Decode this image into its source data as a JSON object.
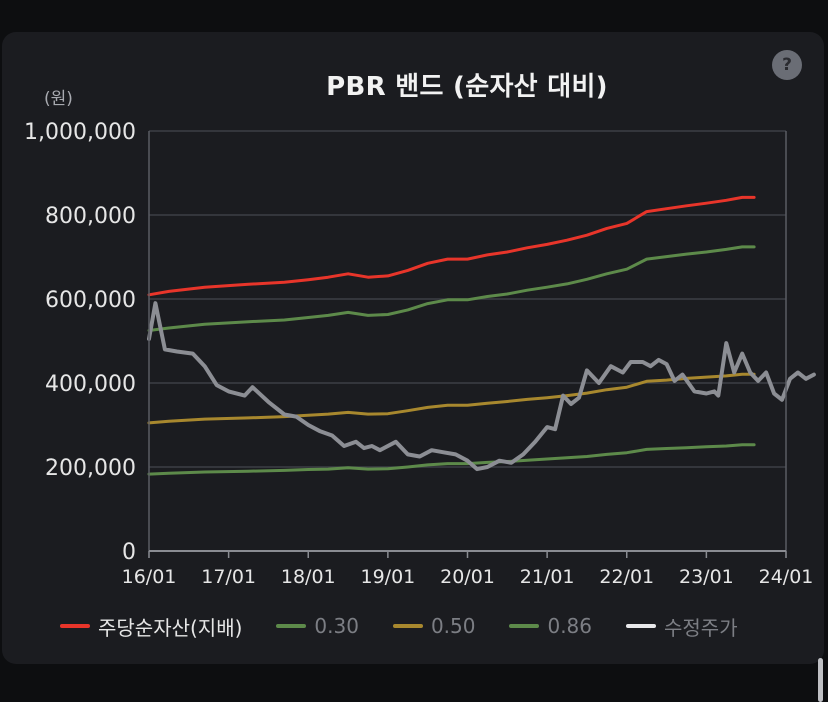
{
  "help_label": "?",
  "chart_data": {
    "type": "line",
    "title": "PBR 밴드 (순자산 대비)",
    "unit_label": "(원)",
    "xlabel": "",
    "ylabel": "",
    "ylim": [
      0,
      1000000
    ],
    "y_ticks": [
      0,
      200000,
      400000,
      600000,
      800000,
      1000000
    ],
    "y_tick_labels": [
      "0",
      "200,000",
      "400,000",
      "600,000",
      "800,000",
      "1,000,000"
    ],
    "x_range": [
      2016.0,
      2024.0
    ],
    "x_ticks": [
      2016,
      2017,
      2018,
      2019,
      2020,
      2021,
      2022,
      2023,
      2024
    ],
    "x_tick_labels": [
      "16/01",
      "17/01",
      "18/01",
      "19/01",
      "20/01",
      "21/01",
      "22/01",
      "23/01",
      "24/01"
    ],
    "grid": true,
    "legend_position": "bottom",
    "series": [
      {
        "name": "주당순자산(지배)",
        "color": "#e8352a",
        "points": [
          [
            2016.0,
            610000
          ],
          [
            2016.25,
            618000
          ],
          [
            2016.7,
            628000
          ],
          [
            2017.25,
            635000
          ],
          [
            2017.7,
            640000
          ],
          [
            2018.0,
            646000
          ],
          [
            2018.25,
            652000
          ],
          [
            2018.5,
            660000
          ],
          [
            2018.75,
            652000
          ],
          [
            2019.0,
            655000
          ],
          [
            2019.25,
            668000
          ],
          [
            2019.5,
            685000
          ],
          [
            2019.75,
            695000
          ],
          [
            2020.0,
            695000
          ],
          [
            2020.25,
            705000
          ],
          [
            2020.5,
            712000
          ],
          [
            2020.75,
            722000
          ],
          [
            2021.0,
            730000
          ],
          [
            2021.25,
            740000
          ],
          [
            2021.5,
            752000
          ],
          [
            2021.75,
            768000
          ],
          [
            2022.0,
            780000
          ],
          [
            2022.25,
            808000
          ],
          [
            2022.5,
            815000
          ],
          [
            2022.75,
            822000
          ],
          [
            2023.0,
            828000
          ],
          [
            2023.25,
            835000
          ],
          [
            2023.45,
            842000
          ],
          [
            2023.6,
            842000
          ]
        ]
      },
      {
        "name": "0.30",
        "color": "#5d8a4a",
        "points": [
          [
            2016.0,
            183000
          ],
          [
            2016.25,
            185000
          ],
          [
            2016.7,
            188000
          ],
          [
            2017.25,
            190000
          ],
          [
            2017.7,
            192000
          ],
          [
            2018.0,
            194000
          ],
          [
            2018.25,
            195000
          ],
          [
            2018.5,
            198000
          ],
          [
            2018.75,
            195000
          ],
          [
            2019.0,
            196000
          ],
          [
            2019.25,
            200000
          ],
          [
            2019.5,
            205000
          ],
          [
            2019.75,
            208000
          ],
          [
            2020.0,
            208000
          ],
          [
            2020.25,
            211000
          ],
          [
            2020.5,
            213000
          ],
          [
            2020.75,
            216000
          ],
          [
            2021.0,
            219000
          ],
          [
            2021.25,
            222000
          ],
          [
            2021.5,
            225000
          ],
          [
            2021.75,
            230000
          ],
          [
            2022.0,
            234000
          ],
          [
            2022.25,
            242000
          ],
          [
            2022.5,
            244000
          ],
          [
            2022.75,
            246000
          ],
          [
            2023.0,
            248000
          ],
          [
            2023.25,
            250000
          ],
          [
            2023.45,
            253000
          ],
          [
            2023.6,
            253000
          ]
        ]
      },
      {
        "name": "0.50",
        "color": "#a8882e",
        "points": [
          [
            2016.0,
            305000
          ],
          [
            2016.25,
            309000
          ],
          [
            2016.7,
            314000
          ],
          [
            2017.25,
            317000
          ],
          [
            2017.7,
            320000
          ],
          [
            2018.0,
            323000
          ],
          [
            2018.25,
            326000
          ],
          [
            2018.5,
            330000
          ],
          [
            2018.75,
            326000
          ],
          [
            2019.0,
            327000
          ],
          [
            2019.25,
            334000
          ],
          [
            2019.5,
            342000
          ],
          [
            2019.75,
            347000
          ],
          [
            2020.0,
            347000
          ],
          [
            2020.25,
            352000
          ],
          [
            2020.5,
            356000
          ],
          [
            2020.75,
            361000
          ],
          [
            2021.0,
            365000
          ],
          [
            2021.25,
            370000
          ],
          [
            2021.5,
            376000
          ],
          [
            2021.75,
            384000
          ],
          [
            2022.0,
            390000
          ],
          [
            2022.25,
            404000
          ],
          [
            2022.5,
            407000
          ],
          [
            2022.75,
            411000
          ],
          [
            2023.0,
            414000
          ],
          [
            2023.25,
            417000
          ],
          [
            2023.45,
            421000
          ],
          [
            2023.6,
            421000
          ]
        ]
      },
      {
        "name": "0.86",
        "color": "#5d8a4a",
        "points": [
          [
            2016.0,
            525000
          ],
          [
            2016.25,
            531000
          ],
          [
            2016.7,
            540000
          ],
          [
            2017.25,
            546000
          ],
          [
            2017.7,
            550000
          ],
          [
            2018.0,
            556000
          ],
          [
            2018.25,
            561000
          ],
          [
            2018.5,
            568000
          ],
          [
            2018.75,
            561000
          ],
          [
            2019.0,
            563000
          ],
          [
            2019.25,
            574000
          ],
          [
            2019.5,
            589000
          ],
          [
            2019.75,
            598000
          ],
          [
            2020.0,
            598000
          ],
          [
            2020.25,
            606000
          ],
          [
            2020.5,
            612000
          ],
          [
            2020.75,
            621000
          ],
          [
            2021.0,
            628000
          ],
          [
            2021.25,
            636000
          ],
          [
            2021.5,
            647000
          ],
          [
            2021.75,
            660000
          ],
          [
            2022.0,
            671000
          ],
          [
            2022.25,
            695000
          ],
          [
            2022.5,
            701000
          ],
          [
            2022.75,
            707000
          ],
          [
            2023.0,
            712000
          ],
          [
            2023.25,
            718000
          ],
          [
            2023.45,
            724000
          ],
          [
            2023.6,
            724000
          ]
        ]
      },
      {
        "name": "수정주가",
        "color": "#8c8e94",
        "points": [
          [
            2016.0,
            505000
          ],
          [
            2016.08,
            590000
          ],
          [
            2016.2,
            480000
          ],
          [
            2016.35,
            475000
          ],
          [
            2016.55,
            470000
          ],
          [
            2016.7,
            440000
          ],
          [
            2016.85,
            395000
          ],
          [
            2017.0,
            380000
          ],
          [
            2017.2,
            370000
          ],
          [
            2017.3,
            390000
          ],
          [
            2017.5,
            355000
          ],
          [
            2017.7,
            325000
          ],
          [
            2017.85,
            320000
          ],
          [
            2018.0,
            300000
          ],
          [
            2018.15,
            285000
          ],
          [
            2018.3,
            275000
          ],
          [
            2018.45,
            250000
          ],
          [
            2018.6,
            260000
          ],
          [
            2018.7,
            245000
          ],
          [
            2018.8,
            250000
          ],
          [
            2018.9,
            240000
          ],
          [
            2019.1,
            260000
          ],
          [
            2019.25,
            230000
          ],
          [
            2019.4,
            225000
          ],
          [
            2019.55,
            240000
          ],
          [
            2019.7,
            235000
          ],
          [
            2019.85,
            230000
          ],
          [
            2020.0,
            215000
          ],
          [
            2020.12,
            195000
          ],
          [
            2020.25,
            200000
          ],
          [
            2020.4,
            215000
          ],
          [
            2020.55,
            210000
          ],
          [
            2020.7,
            230000
          ],
          [
            2020.85,
            260000
          ],
          [
            2021.0,
            295000
          ],
          [
            2021.1,
            290000
          ],
          [
            2021.2,
            370000
          ],
          [
            2021.3,
            350000
          ],
          [
            2021.4,
            365000
          ],
          [
            2021.5,
            430000
          ],
          [
            2021.65,
            400000
          ],
          [
            2021.8,
            440000
          ],
          [
            2021.95,
            425000
          ],
          [
            2022.05,
            450000
          ],
          [
            2022.2,
            450000
          ],
          [
            2022.3,
            440000
          ],
          [
            2022.4,
            455000
          ],
          [
            2022.5,
            445000
          ],
          [
            2022.6,
            405000
          ],
          [
            2022.7,
            420000
          ],
          [
            2022.85,
            380000
          ],
          [
            2023.0,
            375000
          ],
          [
            2023.1,
            380000
          ],
          [
            2023.15,
            370000
          ],
          [
            2023.25,
            495000
          ],
          [
            2023.35,
            425000
          ],
          [
            2023.45,
            470000
          ],
          [
            2023.55,
            425000
          ],
          [
            2023.65,
            405000
          ],
          [
            2023.75,
            425000
          ],
          [
            2023.85,
            375000
          ],
          [
            2023.95,
            360000
          ],
          [
            2024.05,
            410000
          ],
          [
            2024.15,
            425000
          ],
          [
            2024.25,
            410000
          ],
          [
            2024.35,
            420000
          ]
        ]
      }
    ]
  }
}
